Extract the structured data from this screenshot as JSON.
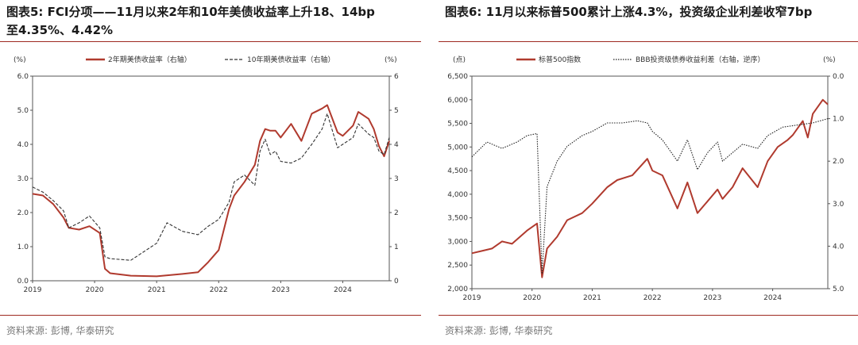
{
  "chart_data": [
    {
      "type": "line",
      "title_line1": "图表5:  FCI分项——11月以来2年和10年美债收益率上升18、14bp",
      "title_line2": "至4.35%、4.42%",
      "left_unit": "(%)",
      "right_unit": "(%)",
      "ylim_left": [
        0.0,
        6.0
      ],
      "ylim_right": [
        0,
        6
      ],
      "yticks_left": [
        "0.0",
        "1.0",
        "2.0",
        "3.0",
        "4.0",
        "5.0",
        "6.0"
      ],
      "yticks_right": [
        "0",
        "1",
        "2",
        "3",
        "4",
        "5",
        "6"
      ],
      "xticks": [
        "2019",
        "2020",
        "2021",
        "2022",
        "2023",
        "2024"
      ],
      "x_range": [
        "2019-01",
        "2024-10"
      ],
      "legend_placement": "top",
      "source": "资料来源: 彭博, 华泰研究",
      "series": [
        {
          "name": "2年期美债收益率（右轴）",
          "color": "#b03a2e",
          "style": "solid",
          "x": [
            "2019-01",
            "2019-03",
            "2019-05",
            "2019-07",
            "2019-08",
            "2019-10",
            "2019-12",
            "2020-02",
            "2020-03",
            "2020-04",
            "2020-08",
            "2021-01",
            "2021-06",
            "2021-09",
            "2021-11",
            "2022-01",
            "2022-03",
            "2022-04",
            "2022-06",
            "2022-08",
            "2022-09",
            "2022-10",
            "2022-11",
            "2022-12",
            "2023-01",
            "2023-03",
            "2023-05",
            "2023-07",
            "2023-09",
            "2023-10",
            "2023-12",
            "2024-01",
            "2024-03",
            "2024-04",
            "2024-06",
            "2024-07",
            "2024-08",
            "2024-09",
            "2024-10"
          ],
          "values": [
            2.55,
            2.5,
            2.25,
            1.85,
            1.55,
            1.5,
            1.6,
            1.4,
            0.35,
            0.22,
            0.15,
            0.13,
            0.2,
            0.25,
            0.55,
            0.9,
            2.1,
            2.5,
            2.9,
            3.4,
            4.1,
            4.45,
            4.4,
            4.4,
            4.2,
            4.6,
            4.1,
            4.9,
            5.05,
            5.15,
            4.35,
            4.25,
            4.55,
            4.95,
            4.75,
            4.45,
            3.95,
            3.65,
            4.1
          ]
        },
        {
          "name": "10年期美债收益率（右轴）",
          "color": "#333333",
          "style": "dashed",
          "x": [
            "2019-01",
            "2019-03",
            "2019-05",
            "2019-07",
            "2019-08",
            "2019-10",
            "2019-12",
            "2020-02",
            "2020-03",
            "2020-04",
            "2020-08",
            "2021-01",
            "2021-03",
            "2021-06",
            "2021-09",
            "2021-11",
            "2022-01",
            "2022-03",
            "2022-04",
            "2022-06",
            "2022-08",
            "2022-09",
            "2022-10",
            "2022-11",
            "2022-12",
            "2023-01",
            "2023-03",
            "2023-05",
            "2023-07",
            "2023-09",
            "2023-10",
            "2023-12",
            "2024-01",
            "2024-03",
            "2024-04",
            "2024-06",
            "2024-07",
            "2024-08",
            "2024-09",
            "2024-10"
          ],
          "values": [
            2.75,
            2.6,
            2.35,
            2.05,
            1.55,
            1.7,
            1.9,
            1.55,
            0.7,
            0.65,
            0.6,
            1.1,
            1.7,
            1.45,
            1.35,
            1.6,
            1.8,
            2.3,
            2.9,
            3.1,
            2.8,
            3.8,
            4.15,
            3.7,
            3.8,
            3.5,
            3.45,
            3.6,
            4.0,
            4.45,
            4.9,
            3.9,
            4.0,
            4.2,
            4.6,
            4.3,
            4.2,
            3.8,
            3.7,
            4.2
          ]
        }
      ]
    },
    {
      "type": "line",
      "title_line1": "图表6:  11月以来标普500累计上涨4.3%，投资级企业利差收窄7bp",
      "left_unit": "(点)",
      "right_unit": "(%)",
      "ylim_left": [
        2000,
        6500
      ],
      "ylim_right": [
        5.0,
        0.0
      ],
      "yticks_left": [
        "2,000",
        "2,500",
        "3,000",
        "3,500",
        "4,000",
        "4,500",
        "5,000",
        "5,500",
        "6,000",
        "6,500"
      ],
      "yticks_right": [
        "0.0",
        "1.0",
        "2.0",
        "3.0",
        "4.0",
        "5.0"
      ],
      "xticks": [
        "2019",
        "2020",
        "2021",
        "2022",
        "2023",
        "2024"
      ],
      "x_range": [
        "2019-01",
        "2024-12"
      ],
      "legend_placement": "top",
      "source": "资料来源: 彭博, 华泰研究",
      "series": [
        {
          "name": "标普500指数",
          "color": "#b03a2e",
          "style": "solid",
          "axis": "left",
          "x": [
            "2019-01",
            "2019-03",
            "2019-05",
            "2019-07",
            "2019-09",
            "2019-12",
            "2020-02",
            "2020-03",
            "2020-04",
            "2020-06",
            "2020-08",
            "2020-11",
            "2021-01",
            "2021-04",
            "2021-06",
            "2021-09",
            "2021-12",
            "2022-01",
            "2022-03",
            "2022-06",
            "2022-08",
            "2022-10",
            "2022-12",
            "2023-02",
            "2023-03",
            "2023-05",
            "2023-07",
            "2023-10",
            "2023-12",
            "2024-02",
            "2024-04",
            "2024-05",
            "2024-07",
            "2024-08",
            "2024-09",
            "2024-11",
            "2024-12"
          ],
          "values": [
            2750,
            2800,
            2850,
            3000,
            2950,
            3230,
            3380,
            2240,
            2850,
            3100,
            3450,
            3600,
            3800,
            4150,
            4300,
            4400,
            4750,
            4500,
            4400,
            3700,
            4250,
            3600,
            3850,
            4100,
            3900,
            4150,
            4550,
            4150,
            4700,
            5000,
            5150,
            5250,
            5550,
            5200,
            5700,
            6000,
            5900
          ]
        },
        {
          "name": "BBB投资级债券收益利差（右轴，逆序）",
          "color": "#222222",
          "style": "dotted",
          "axis": "right",
          "x": [
            "2019-01",
            "2019-04",
            "2019-07",
            "2019-10",
            "2019-12",
            "2020-02",
            "2020-03",
            "2020-04",
            "2020-06",
            "2020-08",
            "2020-11",
            "2021-01",
            "2021-04",
            "2021-07",
            "2021-10",
            "2021-12",
            "2022-01",
            "2022-03",
            "2022-06",
            "2022-08",
            "2022-10",
            "2022-12",
            "2023-02",
            "2023-03",
            "2023-05",
            "2023-07",
            "2023-10",
            "2023-12",
            "2024-03",
            "2024-06",
            "2024-09",
            "2024-12"
          ],
          "values": [
            1.9,
            1.55,
            1.7,
            1.55,
            1.4,
            1.35,
            4.65,
            2.6,
            2.0,
            1.65,
            1.4,
            1.3,
            1.1,
            1.1,
            1.05,
            1.1,
            1.3,
            1.5,
            2.0,
            1.5,
            2.2,
            1.8,
            1.55,
            2.0,
            1.8,
            1.6,
            1.7,
            1.4,
            1.2,
            1.15,
            1.1,
            1.0
          ]
        }
      ]
    }
  ]
}
